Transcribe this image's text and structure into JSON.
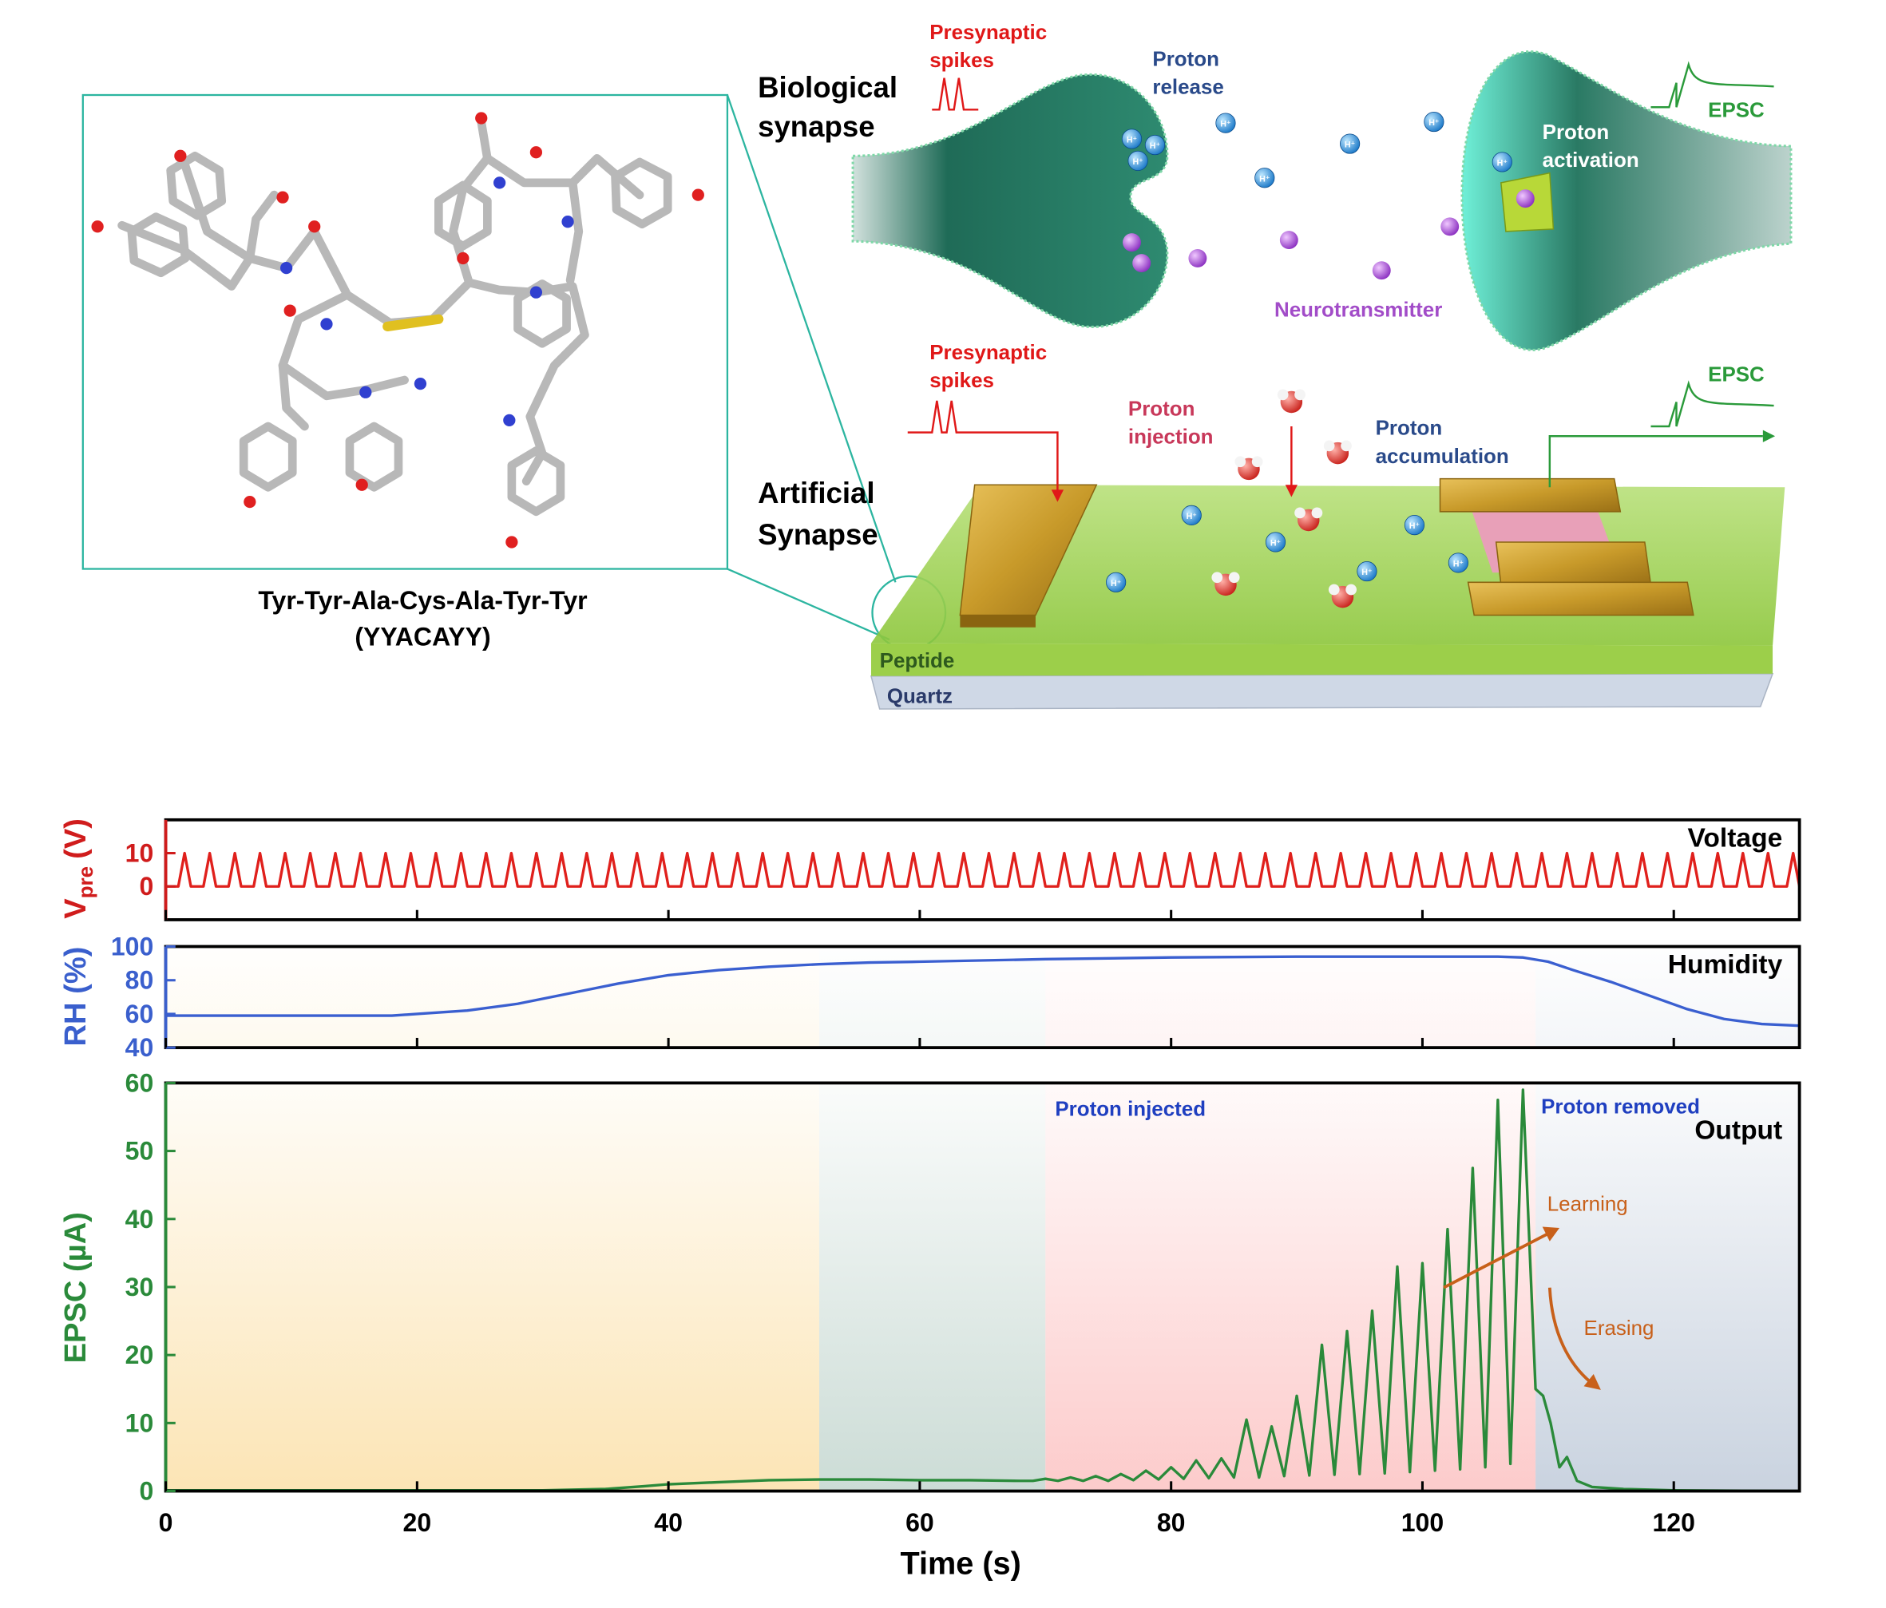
{
  "diagram": {
    "molecule_name": [
      "Tyr-Tyr-Ala-Cys-Ala-Tyr-Tyr",
      "(YYACAYY)"
    ],
    "biological_synapse": [
      "Biological",
      "synapse"
    ],
    "artificial_synapse": [
      "Artificial",
      "Synapse"
    ],
    "presynaptic_spikes_top": [
      "Presynaptic",
      "spikes"
    ],
    "presynaptic_spikes_bottom": [
      "Presynaptic",
      "spikes"
    ],
    "proton_release": [
      "Proton",
      "release"
    ],
    "proton_activation": [
      "Proton",
      "activation"
    ],
    "epsc_top": "EPSC",
    "epsc_bottom": "EPSC",
    "neurotransmitter": "Neurotransmitter",
    "proton_injection": [
      "Proton",
      "injection"
    ],
    "proton_accumulation": [
      "Proton",
      "accumulation"
    ],
    "peptide": "Peptide",
    "quartz": "Quartz",
    "ion_label": "H⁺"
  },
  "chart_data": [
    {
      "type": "line",
      "title": "Voltage",
      "ylabel": "V",
      "ylabel_sub": "pre",
      "ylabel_unit": "(V)",
      "xlim": [
        0,
        130
      ],
      "ylim": [
        -10,
        20
      ],
      "yticks": [
        0,
        10
      ],
      "color": "#e0201c",
      "axis_color": "#d01c1c",
      "x": [
        0,
        1,
        1.5,
        2,
        3,
        3.5,
        4,
        5,
        5.5,
        6,
        7,
        7.5,
        8,
        9,
        9.5,
        10,
        11,
        11.5,
        12,
        13,
        13.5,
        14,
        15,
        15.5,
        16,
        17,
        17.5,
        18,
        19,
        19.5,
        20,
        21,
        21.5,
        22,
        23,
        23.5,
        24,
        25,
        25.5,
        26,
        27,
        27.5,
        28,
        29,
        29.5,
        30,
        31,
        31.5,
        32,
        33,
        33.5,
        34,
        35,
        35.5,
        36,
        37,
        37.5,
        38,
        39,
        39.5,
        40,
        41,
        41.5,
        42,
        43,
        43.5,
        44,
        45,
        45.5,
        46,
        47,
        47.5,
        48,
        49,
        49.5,
        50,
        51,
        51.5,
        52,
        53,
        53.5,
        54,
        55,
        55.5,
        56,
        57,
        57.5,
        58,
        59,
        59.5,
        60,
        61,
        61.5,
        62,
        63,
        63.5,
        64,
        65,
        65.5,
        66,
        67,
        67.5,
        68,
        69,
        69.5,
        70,
        71,
        71.5,
        72,
        73,
        73.5,
        74,
        75,
        75.5,
        76,
        77,
        77.5,
        78,
        79,
        79.5,
        80,
        81,
        81.5,
        82,
        83,
        83.5,
        84,
        85,
        85.5,
        86,
        87,
        87.5,
        88,
        89,
        89.5,
        90,
        91,
        91.5,
        92,
        93,
        93.5,
        94,
        95,
        95.5,
        96,
        97,
        97.5,
        98,
        99,
        99.5,
        100,
        101,
        101.5,
        102,
        103,
        103.5,
        104,
        105,
        105.5,
        106,
        107,
        107.5,
        108,
        109,
        109.5,
        110,
        111,
        111.5,
        112,
        113,
        113.5,
        114,
        115,
        115.5,
        116,
        117,
        117.5,
        118,
        119,
        119.5,
        120,
        121,
        121.5,
        122,
        123,
        123.5,
        124,
        125,
        125.5,
        126,
        127,
        127.5,
        128,
        129,
        129.5,
        130
      ],
      "values": [
        0,
        0,
        10,
        0,
        0,
        10,
        0,
        0,
        10,
        0,
        0,
        10,
        0,
        0,
        10,
        0,
        0,
        10,
        0,
        0,
        10,
        0,
        0,
        10,
        0,
        0,
        10,
        0,
        0,
        10,
        0,
        0,
        10,
        0,
        0,
        10,
        0,
        0,
        10,
        0,
        0,
        10,
        0,
        0,
        10,
        0,
        0,
        10,
        0,
        0,
        10,
        0,
        0,
        10,
        0,
        0,
        10,
        0,
        0,
        10,
        0,
        0,
        10,
        0,
        0,
        10,
        0,
        0,
        10,
        0,
        0,
        10,
        0,
        0,
        10,
        0,
        0,
        10,
        0,
        0,
        10,
        0,
        0,
        10,
        0,
        0,
        10,
        0,
        0,
        10,
        0,
        0,
        10,
        0,
        0,
        10,
        0,
        0,
        10,
        0,
        0,
        10,
        0,
        0,
        10,
        0,
        0,
        10,
        0,
        0,
        10,
        0,
        0,
        10,
        0,
        0,
        10,
        0,
        0,
        10,
        0,
        0,
        10,
        0,
        0,
        10,
        0,
        0,
        10,
        0,
        0,
        10,
        0,
        0,
        10,
        0,
        0,
        10,
        0,
        0,
        10,
        0,
        0,
        10,
        0,
        0,
        10,
        0,
        0,
        10,
        0,
        0,
        10,
        0,
        0,
        10,
        0,
        0,
        10,
        0,
        0,
        10,
        0,
        0,
        10,
        0,
        0,
        10,
        0,
        0,
        10,
        0,
        0,
        10,
        0,
        0,
        10,
        0,
        0,
        10,
        0,
        0,
        10,
        0,
        0,
        10,
        0,
        0,
        10,
        0,
        0,
        10,
        0,
        0,
        10,
        0
      ]
    },
    {
      "type": "line",
      "title": "Humidity",
      "ylabel": "RH (%)",
      "xlim": [
        0,
        130
      ],
      "ylim": [
        40,
        100
      ],
      "yticks": [
        40,
        60,
        80,
        100
      ],
      "color": "#3a5fd0",
      "axis_color": "#3a5fcd",
      "x": [
        0,
        18,
        20,
        24,
        28,
        32,
        36,
        40,
        44,
        48,
        52,
        56,
        60,
        70,
        80,
        90,
        100,
        106,
        108,
        110,
        112,
        115,
        118,
        121,
        124,
        127,
        130
      ],
      "values": [
        59,
        59,
        60,
        62,
        66,
        72,
        78,
        83,
        86,
        88,
        89.5,
        90.5,
        91,
        92.5,
        93.5,
        94,
        94,
        94,
        93.5,
        91,
        86,
        79,
        71,
        63,
        57,
        54,
        53
      ]
    },
    {
      "type": "line",
      "title": "Output",
      "ylabel": "EPSC (µA)",
      "xlabel": "Time (s)",
      "xlim": [
        0,
        130
      ],
      "ylim": [
        0,
        60
      ],
      "yticks": [
        0,
        10,
        20,
        30,
        40,
        50,
        60
      ],
      "xticks": [
        0,
        20,
        40,
        60,
        80,
        100,
        120
      ],
      "color": "#2a8a3a",
      "axis_color": "#2a8a3a",
      "annotations": [
        "Proton injected",
        "Proton removed",
        "Learning",
        "Erasing"
      ],
      "regions": [
        {
          "x": [
            0,
            52
          ],
          "color": "#fbe0a8"
        },
        {
          "x": [
            52,
            70
          ],
          "color": "#c3d6cf"
        },
        {
          "x": [
            70,
            109
          ],
          "color": "#fcc2c2"
        },
        {
          "x": [
            109,
            130
          ],
          "color": "#c0cbda"
        }
      ],
      "x": [
        0,
        20,
        30,
        35,
        38,
        40,
        44,
        48,
        52,
        56,
        60,
        64,
        68,
        69,
        70,
        71,
        72,
        73,
        74,
        75,
        76,
        77,
        78,
        79,
        80,
        81,
        82,
        83,
        84,
        85,
        86,
        87,
        88,
        89,
        90,
        91,
        92,
        93,
        94,
        95,
        96,
        97,
        98,
        99,
        100,
        101,
        102,
        103,
        104,
        105,
        106,
        107,
        108,
        109,
        109.6,
        110.2,
        110.9,
        111.5,
        112.3,
        113.5,
        116,
        120,
        130
      ],
      "values": [
        0.1,
        0.1,
        0.1,
        0.3,
        0.7,
        1,
        1.3,
        1.6,
        1.7,
        1.7,
        1.6,
        1.6,
        1.5,
        1.5,
        1.8,
        1.5,
        2,
        1.5,
        2.2,
        1.5,
        2.5,
        1.6,
        3,
        1.7,
        3.5,
        1.8,
        4.5,
        1.9,
        4.8,
        2,
        10.5,
        2,
        9.5,
        2.2,
        14,
        2.3,
        21.5,
        2.4,
        23.5,
        2.5,
        26.5,
        2.6,
        33,
        2.8,
        33.5,
        3,
        38.5,
        3.2,
        47.5,
        3.5,
        57.5,
        4,
        59,
        15,
        14,
        10,
        3.5,
        5,
        1.5,
        0.6,
        0.3,
        0.1,
        0
      ]
    }
  ]
}
